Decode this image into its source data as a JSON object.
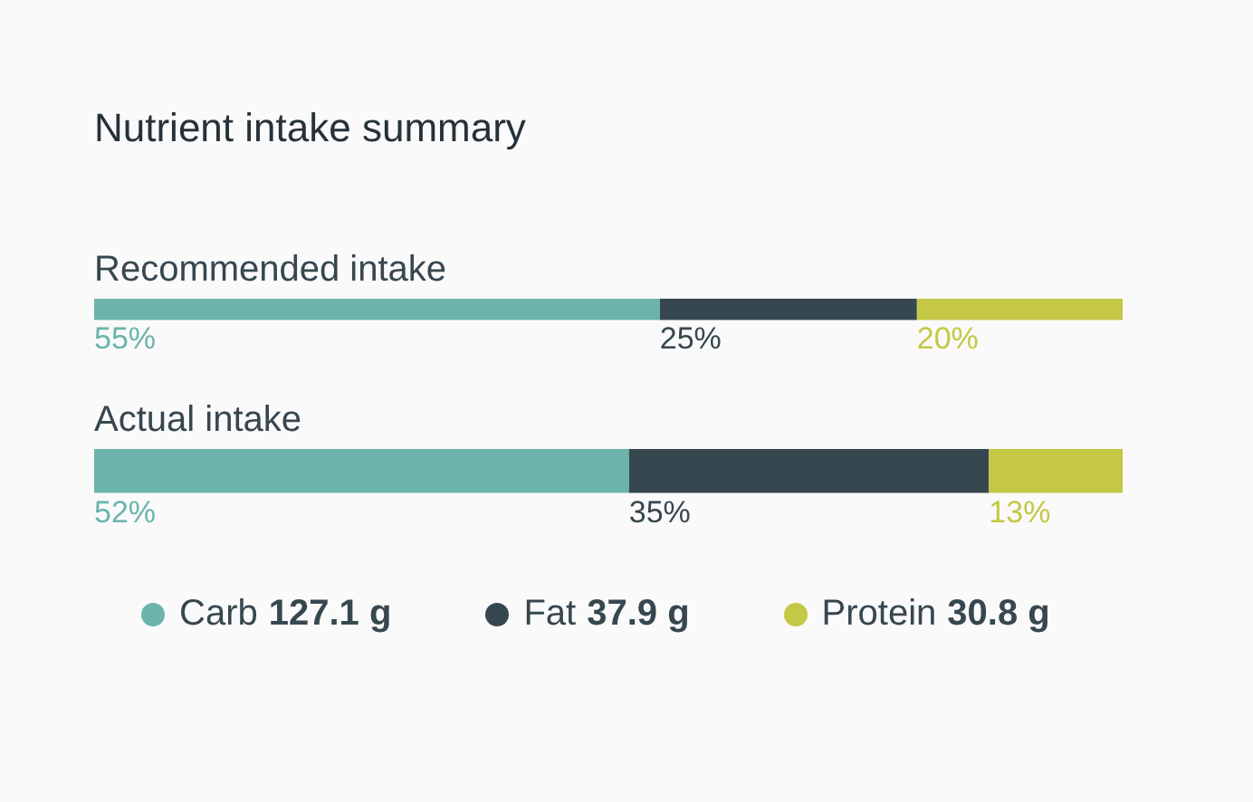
{
  "chart_data": {
    "type": "bar",
    "title": "Nutrient intake summary",
    "orientation": "horizontal",
    "stacked": true,
    "categories": [
      "Recommended intake",
      "Actual intake"
    ],
    "series": [
      {
        "name": "Carb",
        "color": "#6cb4ab",
        "values": [
          55,
          52
        ],
        "value_labels": [
          "55%",
          "52%"
        ]
      },
      {
        "name": "Fat",
        "color": "#37474f",
        "values": [
          25,
          35
        ],
        "value_labels": [
          "25%",
          "35%"
        ]
      },
      {
        "name": "Protein",
        "color": "#c4c844",
        "values": [
          20,
          13
        ],
        "value_labels": [
          "20%",
          "13%"
        ]
      }
    ],
    "annotations": [
      "127.1 g",
      "37.9 g",
      "30.8 g"
    ],
    "legend": "bottom",
    "tick_labels": false,
    "grid": false
  }
}
